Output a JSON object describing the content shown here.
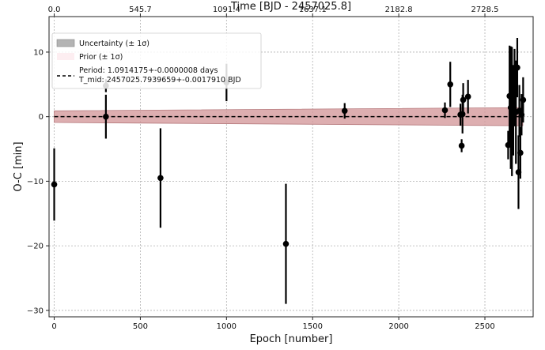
{
  "chart_data": {
    "type": "scatter",
    "title": "",
    "xlabel": "Epoch [number]",
    "ylabel": "O-C [min]",
    "top_xlabel": "Time [BJD - 2457025.8]",
    "xlim": [
      -30,
      2780
    ],
    "ylim": [
      -31,
      15.5
    ],
    "x_ticks": [
      0,
      500,
      1000,
      1500,
      2000,
      2500
    ],
    "y_ticks": [
      -30,
      -20,
      -10,
      0,
      10
    ],
    "top_ticks": [
      {
        "epoch": 0,
        "label": "0.0"
      },
      {
        "epoch": 500,
        "label": "545.7"
      },
      {
        "epoch": 1000,
        "label": "1091.4"
      },
      {
        "epoch": 1500,
        "label": "1637.1"
      },
      {
        "epoch": 2000,
        "label": "2182.8"
      },
      {
        "epoch": 2500,
        "label": "2728.5"
      }
    ],
    "grid": true,
    "legend_position": "top-left",
    "legend": [
      {
        "label": "Uncertainty (± 1σ)",
        "kind": "band"
      },
      {
        "label": "Prior (± 1σ)",
        "kind": "prior"
      },
      {
        "label": "Period: 1.0914175+-0.0000008 days",
        "kind": "dashed-line"
      },
      {
        "label": "T_mid: 2457025.7939659+-0.0017910 BJD",
        "kind": "none"
      }
    ],
    "uncertainty_band": {
      "epochs": [
        0,
        2720
      ],
      "lower": [
        -0.9,
        -1.4
      ],
      "upper": [
        0.9,
        1.4
      ]
    },
    "linear_ephemeris": {
      "epochs": [
        0,
        2720
      ],
      "y": [
        0,
        0
      ]
    },
    "colors": {
      "band_fill": "#d49a9c",
      "band_edge": "#b77b7e",
      "points": "#000000",
      "ephemeris": "#000000",
      "legend_band": "#b4b4b4"
    },
    "points": [
      {
        "x": 0,
        "y": -10.5,
        "err": 5.6
      },
      {
        "x": 300,
        "y": 4.8,
        "err": 1.0
      },
      {
        "x": 300,
        "y": 0.0,
        "err": 3.4
      },
      {
        "x": 617,
        "y": -9.5,
        "err": 7.7
      },
      {
        "x": 1000,
        "y": 5.3,
        "err": 2.9
      },
      {
        "x": 1345,
        "y": -19.7,
        "err": 9.3
      },
      {
        "x": 1686,
        "y": 0.9,
        "err": 1.2
      },
      {
        "x": 2268,
        "y": 1.0,
        "err": 1.2
      },
      {
        "x": 2299,
        "y": 5.0,
        "err": 3.5
      },
      {
        "x": 2358,
        "y": 0.3,
        "err": 1.7
      },
      {
        "x": 2365,
        "y": -4.5,
        "err": 1.0
      },
      {
        "x": 2374,
        "y": 2.6,
        "err": 2.6
      },
      {
        "x": 2370,
        "y": 0.4,
        "err": 3.0
      },
      {
        "x": 2402,
        "y": 3.1,
        "err": 2.6
      },
      {
        "x": 2635,
        "y": -4.4,
        "err": 2.2
      },
      {
        "x": 2643,
        "y": 3.2,
        "err": 7.8
      },
      {
        "x": 2650,
        "y": 1.4,
        "err": 9.5
      },
      {
        "x": 2657,
        "y": 0.8,
        "err": 10.0
      },
      {
        "x": 2665,
        "y": 1.0,
        "err": 7.0
      },
      {
        "x": 2672,
        "y": 4.5,
        "err": 6.0
      },
      {
        "x": 2680,
        "y": 0.7,
        "err": 8.0
      },
      {
        "x": 2688,
        "y": 7.6,
        "err": 4.6
      },
      {
        "x": 2695,
        "y": -8.6,
        "err": 5.7
      },
      {
        "x": 2700,
        "y": 0.9,
        "err": 4.0
      },
      {
        "x": 2706,
        "y": -5.6,
        "err": 4.0
      },
      {
        "x": 2713,
        "y": 0.3,
        "err": 3.2
      },
      {
        "x": 2722,
        "y": 2.6,
        "err": 3.5
      }
    ]
  }
}
